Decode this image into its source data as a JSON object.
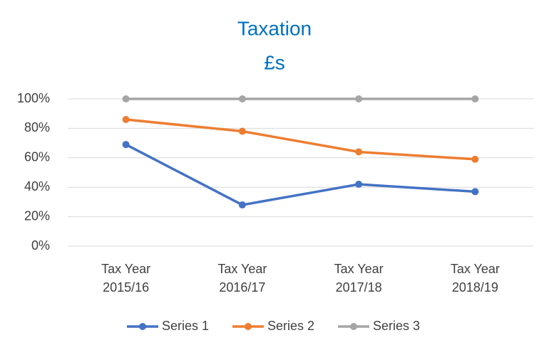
{
  "chart_data": {
    "type": "line",
    "title": "Taxation",
    "subtitle": "£s",
    "categories": [
      "Tax Year 2015/16",
      "Tax Year 2016/17",
      "Tax Year 2017/18",
      "Tax Year 2018/19"
    ],
    "series": [
      {
        "name": "Series 1",
        "color": "#4472c4",
        "values": [
          69,
          28,
          42,
          37
        ]
      },
      {
        "name": "Series 2",
        "color": "#ed7d31",
        "values": [
          86,
          78,
          64,
          59
        ]
      },
      {
        "name": "Series 3",
        "color": "#a5a5a5",
        "values": [
          100,
          100,
          100,
          100
        ]
      }
    ],
    "ylim": [
      0,
      100
    ],
    "yticks": [
      {
        "value": 0,
        "label": "0%"
      },
      {
        "value": 20,
        "label": "20%"
      },
      {
        "value": 40,
        "label": "40%"
      },
      {
        "value": 60,
        "label": "60%"
      },
      {
        "value": 80,
        "label": "80%"
      },
      {
        "value": 100,
        "label": "100%"
      }
    ],
    "grid": true,
    "legend": "bottom"
  }
}
